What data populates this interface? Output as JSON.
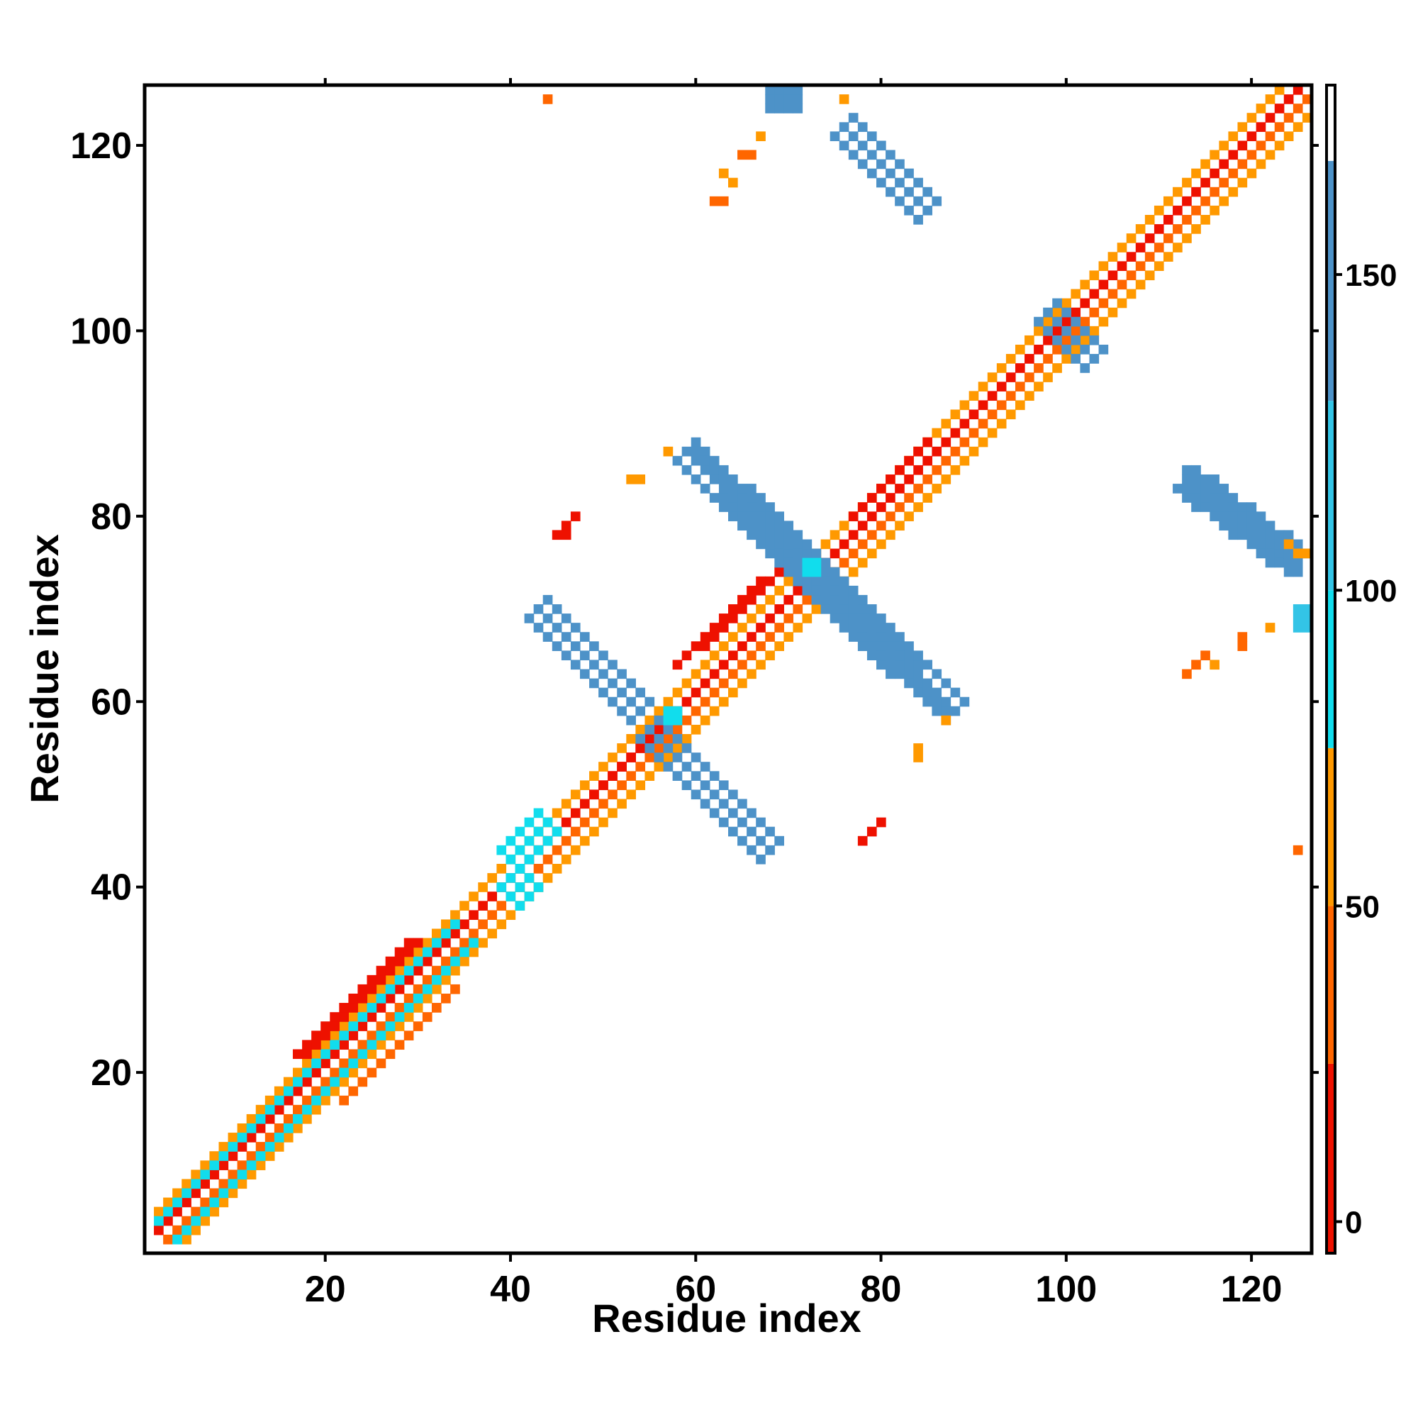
{
  "chart_data": {
    "type": "heatmap",
    "xlabel": "Residue index",
    "ylabel": "Residue index",
    "xlim": [
      1,
      126
    ],
    "ylim": [
      1,
      126
    ],
    "xticks": [
      20,
      40,
      60,
      80,
      100,
      120
    ],
    "yticks": [
      20,
      40,
      60,
      80,
      100,
      120
    ],
    "colorbar": {
      "range": [
        -5,
        180
      ],
      "ticks": [
        0,
        50,
        100,
        150
      ],
      "bands": [
        {
          "from": -5,
          "to": 25,
          "color": "#ee1100"
        },
        {
          "from": 25,
          "to": 50,
          "color": "#ff6600"
        },
        {
          "from": 50,
          "to": 75,
          "color": "#ff9900"
        },
        {
          "from": 75,
          "to": 100,
          "color": "#11dded"
        },
        {
          "from": 100,
          "to": 130,
          "color": "#33c4e6"
        },
        {
          "from": 130,
          "to": 168,
          "color": "#4d92c8"
        },
        {
          "from": 168,
          "to": 180,
          "color": "#ffffff"
        }
      ]
    },
    "segments": [
      {
        "x1": 2,
        "y1": 3,
        "x2": 125,
        "y2": 126,
        "value": 10,
        "width": 0.6
      },
      {
        "x1": 3,
        "y1": 2,
        "x2": 126,
        "y2": 125,
        "value": 40,
        "width": 0.6
      },
      {
        "x1": 2,
        "y1": 5,
        "x2": 123,
        "y2": 126,
        "value": 60,
        "width": 0.6
      },
      {
        "x1": 5,
        "y1": 2,
        "x2": 126,
        "y2": 123,
        "value": 55,
        "width": 0.6
      },
      {
        "x1": 2,
        "y1": 4,
        "x2": 34,
        "y2": 36,
        "value": 90,
        "width": 0.6
      },
      {
        "x1": 4,
        "y1": 2,
        "x2": 36,
        "y2": 34,
        "value": 90,
        "width": 0.6
      },
      {
        "x1": 17,
        "y1": 22,
        "x2": 30,
        "y2": 34,
        "value": 20,
        "width": 1.2
      },
      {
        "x1": 22,
        "y1": 17,
        "x2": 34,
        "y2": 29,
        "value": 35,
        "width": 1.2
      },
      {
        "x1": 40,
        "y1": 43,
        "x2": 44,
        "y2": 47,
        "value": 88,
        "width": 1.5
      },
      {
        "x1": 40,
        "y1": 39,
        "x2": 42,
        "y2": 41,
        "value": 90,
        "width": 1.5
      },
      {
        "x1": 49,
        "y1": 50,
        "x2": 56,
        "y2": 57,
        "value": 15,
        "width": 1.0
      },
      {
        "x1": 58,
        "y1": 64,
        "x2": 70,
        "y2": 75,
        "value": 15,
        "width": 0.8
      },
      {
        "x1": 77,
        "y1": 80,
        "x2": 85,
        "y2": 88,
        "value": 12,
        "width": 0.8
      },
      {
        "x1": 43,
        "y1": 70,
        "x2": 54,
        "y2": 59,
        "value": 145,
        "width": 3.4
      },
      {
        "x1": 55,
        "y1": 57,
        "x2": 68,
        "y2": 44,
        "value": 145,
        "width": 3.4
      },
      {
        "x1": 59,
        "y1": 87,
        "x2": 88,
        "y2": 59,
        "value": 148,
        "width": 3.6
      },
      {
        "x1": 76,
        "y1": 122,
        "x2": 85,
        "y2": 113,
        "value": 150,
        "width": 3.4
      },
      {
        "x1": 113,
        "y1": 84,
        "x2": 125,
        "y2": 75,
        "value": 148,
        "width": 3.0
      },
      {
        "x1": 98,
        "y1": 102,
        "x2": 103,
        "y2": 97,
        "value": 150,
        "width": 3.4
      },
      {
        "x1": 68,
        "y1": 125,
        "x2": 71,
        "y2": 125,
        "value": 135,
        "width": 1.2
      }
    ],
    "blocks": [
      {
        "x": 72,
        "y": 74,
        "w": 2,
        "h": 2,
        "value": 90
      },
      {
        "x": 57,
        "y": 58,
        "w": 2,
        "h": 2,
        "value": 90
      },
      {
        "x": 125,
        "y": 68,
        "w": 2,
        "h": 3,
        "value": 110
      },
      {
        "x": 44,
        "y": 125,
        "w": 1,
        "h": 1,
        "value": 40
      },
      {
        "x": 67,
        "y": 121,
        "w": 1,
        "h": 1,
        "value": 55
      },
      {
        "x": 65,
        "y": 119,
        "w": 2,
        "h": 1,
        "value": 45
      },
      {
        "x": 63,
        "y": 117,
        "w": 1,
        "h": 1,
        "value": 60
      },
      {
        "x": 64,
        "y": 116,
        "w": 1,
        "h": 1,
        "value": 55
      },
      {
        "x": 62,
        "y": 114,
        "w": 2,
        "h": 1,
        "value": 45
      },
      {
        "x": 76,
        "y": 125,
        "w": 1,
        "h": 1,
        "value": 60
      },
      {
        "x": 57,
        "y": 87,
        "w": 1,
        "h": 1,
        "value": 60
      },
      {
        "x": 53,
        "y": 84,
        "w": 2,
        "h": 1,
        "value": 65
      },
      {
        "x": 47,
        "y": 80,
        "w": 1,
        "h": 1,
        "value": 10
      },
      {
        "x": 46,
        "y": 79,
        "w": 1,
        "h": 1,
        "value": 10
      },
      {
        "x": 45,
        "y": 78,
        "w": 2,
        "h": 1,
        "value": 10
      },
      {
        "x": 84,
        "y": 54,
        "w": 1,
        "h": 2,
        "value": 65
      },
      {
        "x": 87,
        "y": 58,
        "w": 1,
        "h": 1,
        "value": 60
      },
      {
        "x": 80,
        "y": 47,
        "w": 1,
        "h": 1,
        "value": 10
      },
      {
        "x": 79,
        "y": 46,
        "w": 1,
        "h": 1,
        "value": 10
      },
      {
        "x": 78,
        "y": 45,
        "w": 1,
        "h": 1,
        "value": 10
      },
      {
        "x": 122,
        "y": 68,
        "w": 1,
        "h": 1,
        "value": 60
      },
      {
        "x": 119,
        "y": 67,
        "w": 1,
        "h": 1,
        "value": 40
      },
      {
        "x": 119,
        "y": 66,
        "w": 1,
        "h": 1,
        "value": 40
      },
      {
        "x": 115,
        "y": 65,
        "w": 1,
        "h": 1,
        "value": 40
      },
      {
        "x": 114,
        "y": 64,
        "w": 1,
        "h": 1,
        "value": 40
      },
      {
        "x": 113,
        "y": 63,
        "w": 1,
        "h": 1,
        "value": 40
      },
      {
        "x": 116,
        "y": 64,
        "w": 1,
        "h": 1,
        "value": 55
      },
      {
        "x": 125,
        "y": 44,
        "w": 1,
        "h": 1,
        "value": 40
      },
      {
        "x": 125,
        "y": 76,
        "w": 2,
        "h": 1,
        "value": 60
      },
      {
        "x": 124,
        "y": 77,
        "w": 1,
        "h": 1,
        "value": 55
      }
    ]
  }
}
